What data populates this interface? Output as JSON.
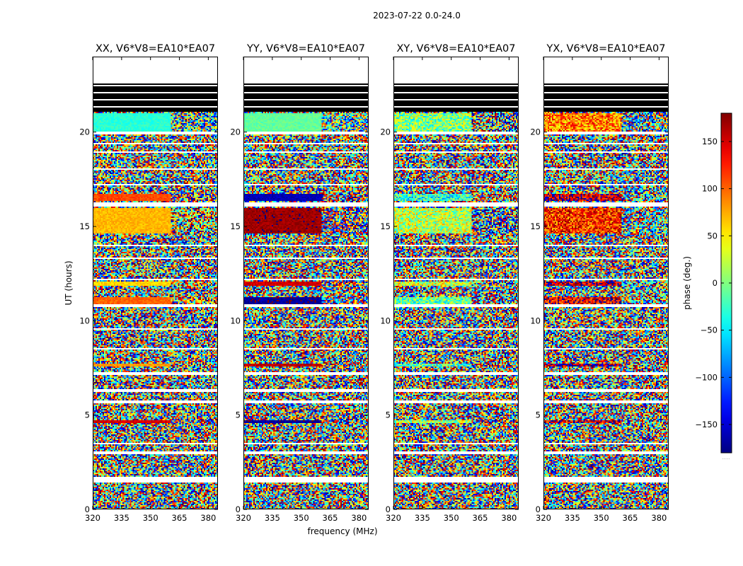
{
  "chart_data": {
    "type": "heatmap",
    "suptitle": "2023-07-22 0.0-24.0",
    "xlabel": "frequency (MHz)",
    "ylabel": "UT (hours)",
    "xlim": [
      320,
      385
    ],
    "ylim": [
      0,
      24
    ],
    "xticks": [
      "320",
      "335",
      "350",
      "365",
      "380"
    ],
    "yticks": [
      "0",
      "5",
      "10",
      "15",
      "20"
    ],
    "panels": [
      {
        "title": "XX, V6*V8=EA10*EA07",
        "pol": "XX"
      },
      {
        "title": "YY, V6*V8=EA10*EA07",
        "pol": "YY"
      },
      {
        "title": "XY, V6*V8=EA10*EA07",
        "pol": "XY"
      },
      {
        "title": "YX, V6*V8=EA10*EA07",
        "pol": "YX"
      }
    ],
    "flagged_ut_ranges": [
      [
        1.45,
        1.75
      ],
      [
        16.05,
        16.3
      ],
      [
        22.65,
        24.0
      ]
    ],
    "masked_ut_range": [
      21.05,
      22.55
    ],
    "colorbar": {
      "label": "phase (deg.)",
      "range": [
        -180,
        180
      ],
      "ticks": [
        "150",
        "100",
        "50",
        "0",
        "−50",
        "−100",
        "−150"
      ],
      "under_label": "....."
    }
  }
}
